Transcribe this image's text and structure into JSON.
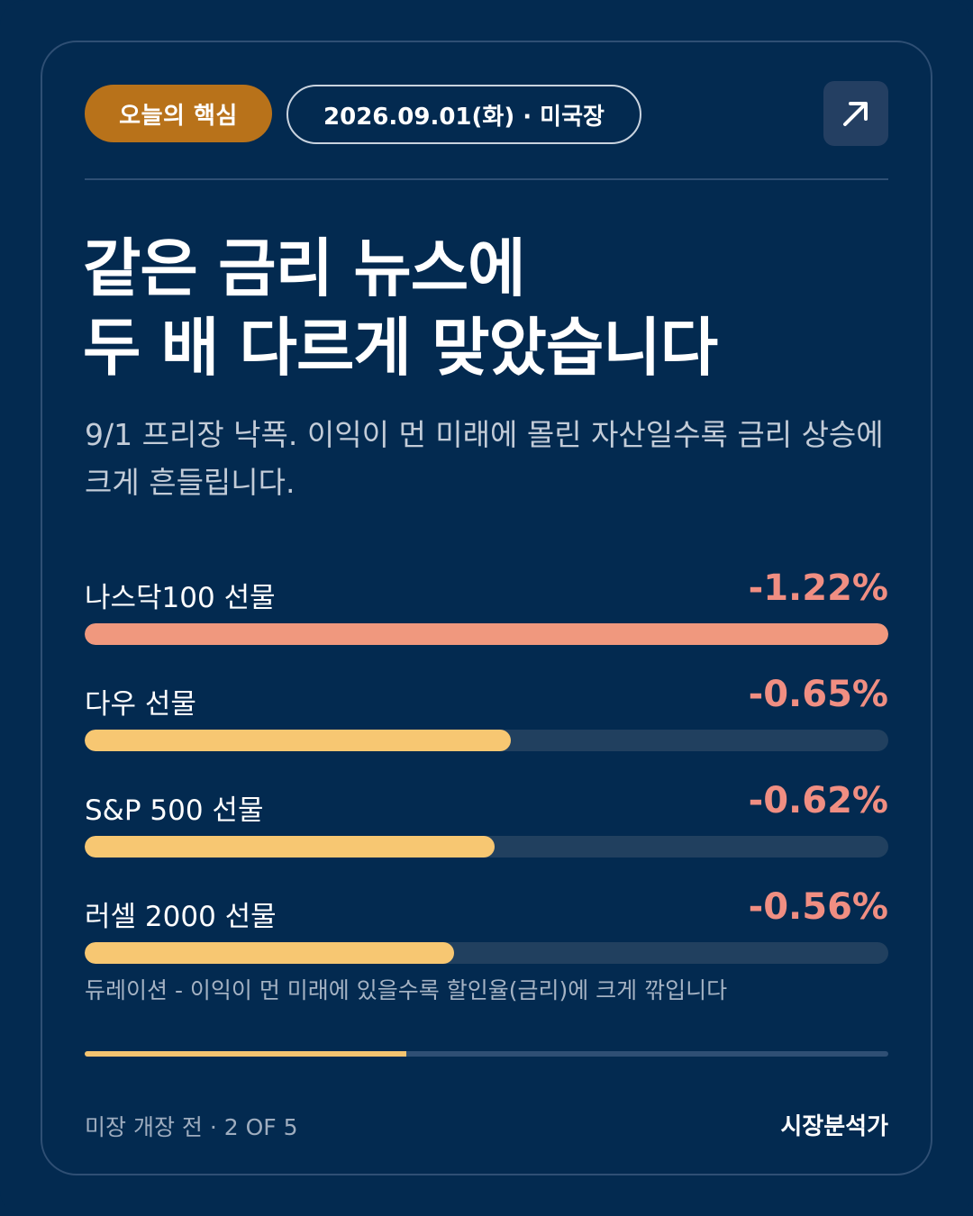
{
  "header": {
    "badge_label": "오늘의 핵심",
    "date_label": "2026.09.01(화) · 미국장",
    "share_icon": "arrow-up-right-icon"
  },
  "headline": {
    "line1": "같은 금리 뉴스에",
    "line2": "두 배 다르게 맞았습니다"
  },
  "subtext": {
    "line1": "9/1 프리장 낙폭. 이익이 먼 미래에 몰린 자산일수록 금리 상승에",
    "line2": "크게 흔들립니다."
  },
  "futures": [
    {
      "label": "나스닥100 선물",
      "value": "-1.22%",
      "fraction": 1.0,
      "color": "#f0987e"
    },
    {
      "label": "다우 선물",
      "value": "-0.65%",
      "fraction": 0.53,
      "color": "#f7c772"
    },
    {
      "label": "S&P 500 선물",
      "value": "-0.62%",
      "fraction": 0.51,
      "color": "#f7c772"
    },
    {
      "label": "러셀 2000 선물",
      "value": "-0.56%",
      "fraction": 0.46,
      "color": "#f7c772"
    }
  ],
  "footnote": "듀레이션 - 이익이 먼 미래에 있을수록 할인율(금리)에 크게 깎입니다",
  "progress": {
    "fraction": 0.4
  },
  "footer": {
    "left": "미장 개장 전 · 2 OF 5",
    "right": "시장분석가"
  }
}
